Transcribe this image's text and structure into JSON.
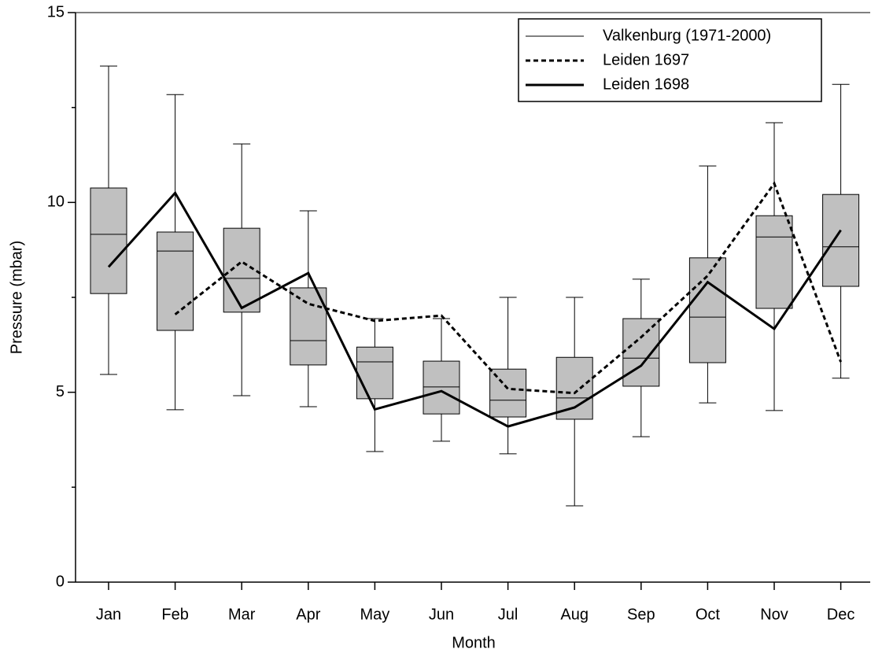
{
  "chart_data": {
    "type": "box",
    "xlabel": "Month",
    "ylabel": "Pressure (mbar)",
    "categories": [
      "Jan",
      "Feb",
      "Mar",
      "Apr",
      "May",
      "Jun",
      "Jul",
      "Aug",
      "Sep",
      "Oct",
      "Nov",
      "Dec"
    ],
    "boxes": {
      "name": "Valkenburg (1971-2000)",
      "color": "#c0c0c0",
      "min": [
        5.47,
        4.54,
        4.91,
        4.62,
        3.44,
        3.71,
        3.38,
        2.01,
        3.83,
        4.72,
        4.52,
        5.37
      ],
      "q1": [
        7.6,
        6.63,
        7.11,
        5.72,
        4.83,
        4.43,
        4.35,
        4.29,
        5.16,
        5.78,
        7.21,
        7.79
      ],
      "median": [
        9.16,
        8.72,
        8.0,
        6.36,
        5.8,
        5.14,
        4.79,
        4.85,
        5.9,
        6.98,
        9.09,
        8.83
      ],
      "q3": [
        10.38,
        9.22,
        9.32,
        7.75,
        6.19,
        5.82,
        5.61,
        5.92,
        6.94,
        8.54,
        9.65,
        10.21
      ],
      "max": [
        13.59,
        12.84,
        11.54,
        9.78,
        6.94,
        6.94,
        7.5,
        7.5,
        7.98,
        10.96,
        12.1,
        13.11
      ]
    },
    "series": [
      {
        "name": "Leiden 1697",
        "color": "#000000",
        "style": "dashed",
        "values": [
          null,
          7.05,
          8.44,
          7.33,
          6.88,
          7.02,
          5.09,
          4.98,
          6.45,
          8.07,
          10.5,
          5.8
        ]
      },
      {
        "name": "Leiden 1698",
        "color": "#000000",
        "style": "solid",
        "values": [
          8.3,
          10.25,
          7.22,
          8.14,
          4.55,
          5.03,
          4.1,
          4.6,
          5.7,
          7.9,
          6.67,
          9.27
        ]
      }
    ],
    "ylim": [
      0,
      15
    ],
    "yticks": [
      0,
      5,
      10,
      15
    ],
    "yminorticks": [
      2.5,
      7.5,
      12.5
    ],
    "legend": "upper right"
  }
}
